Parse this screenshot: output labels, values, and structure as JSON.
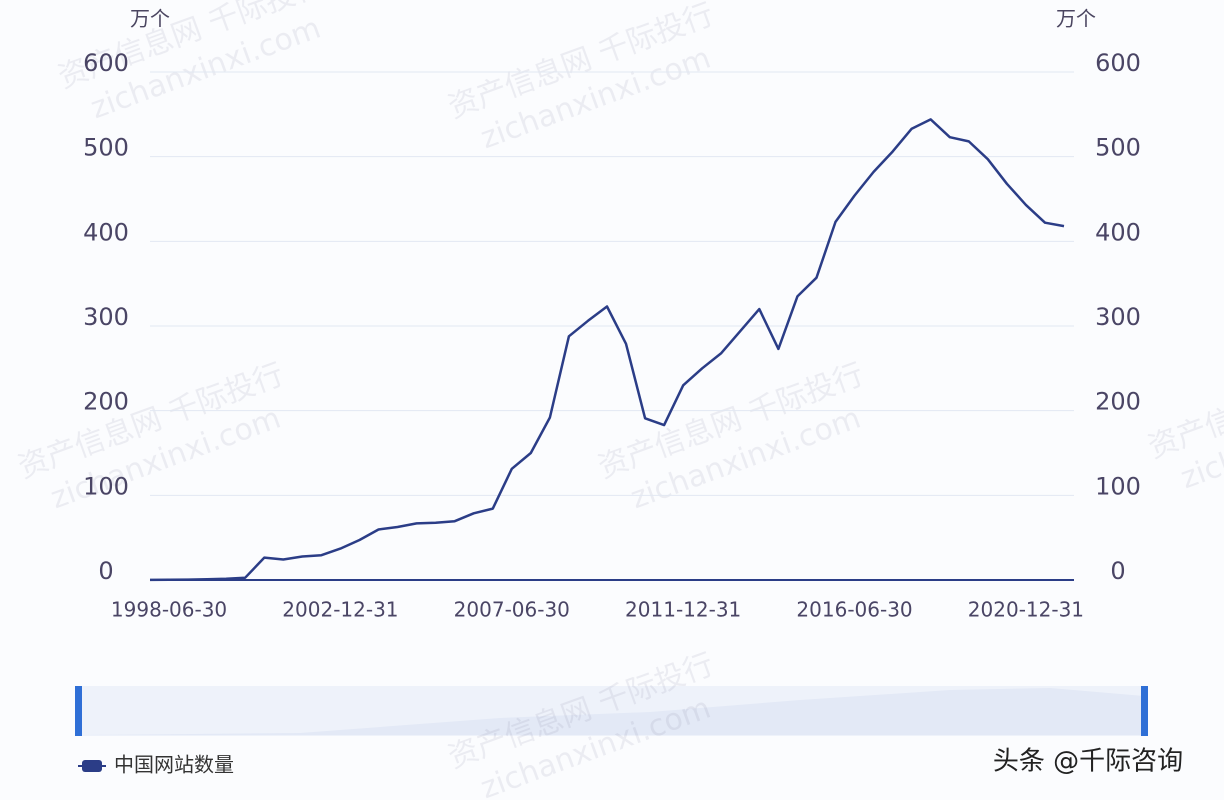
{
  "chart_data": {
    "type": "line",
    "y_unit": "万个",
    "y2_unit": "万个",
    "categories": [
      null,
      "1998-06-30",
      null,
      null,
      null,
      null,
      null,
      null,
      null,
      null,
      "2002-12-31",
      null,
      null,
      null,
      null,
      null,
      null,
      null,
      null,
      "2007-06-30",
      null,
      null,
      null,
      null,
      null,
      null,
      null,
      null,
      "2011-12-31",
      null,
      null,
      null,
      null,
      null,
      null,
      null,
      null,
      "2016-06-30",
      null,
      null,
      null,
      null,
      null,
      null,
      null,
      null,
      "2020-12-31",
      null,
      null
    ],
    "series": [
      {
        "name": "中国网站数量",
        "color": "#2b3d87",
        "values": [
          0.15,
          0.4,
          0.5,
          1,
          1.5,
          2.7,
          26.5,
          24.2,
          27.7,
          29.3,
          37.1,
          47.3,
          59.6,
          62.6,
          66.9,
          67.7,
          69.4,
          78.8,
          84.3,
          131.3,
          150,
          191.9,
          287.8,
          306.1,
          323,
          279,
          191,
          183,
          230,
          250,
          268,
          294,
          320,
          273,
          335,
          357,
          423,
          454,
          482,
          506,
          533,
          544,
          523,
          518,
          497,
          468,
          443,
          422,
          418
        ]
      }
    ],
    "ylim": [
      0,
      600
    ],
    "yticks": [
      0,
      100,
      200,
      300,
      400,
      500,
      600
    ],
    "y2lim": [
      0,
      600
    ],
    "y2ticks": [
      0,
      100,
      200,
      300,
      400,
      500,
      600
    ],
    "grid": true,
    "legend": "bottom-left",
    "watermarks": [
      "资产信息网 千际投行",
      "zichanxinxi.com"
    ],
    "credit": "头条 @千际咨询"
  }
}
